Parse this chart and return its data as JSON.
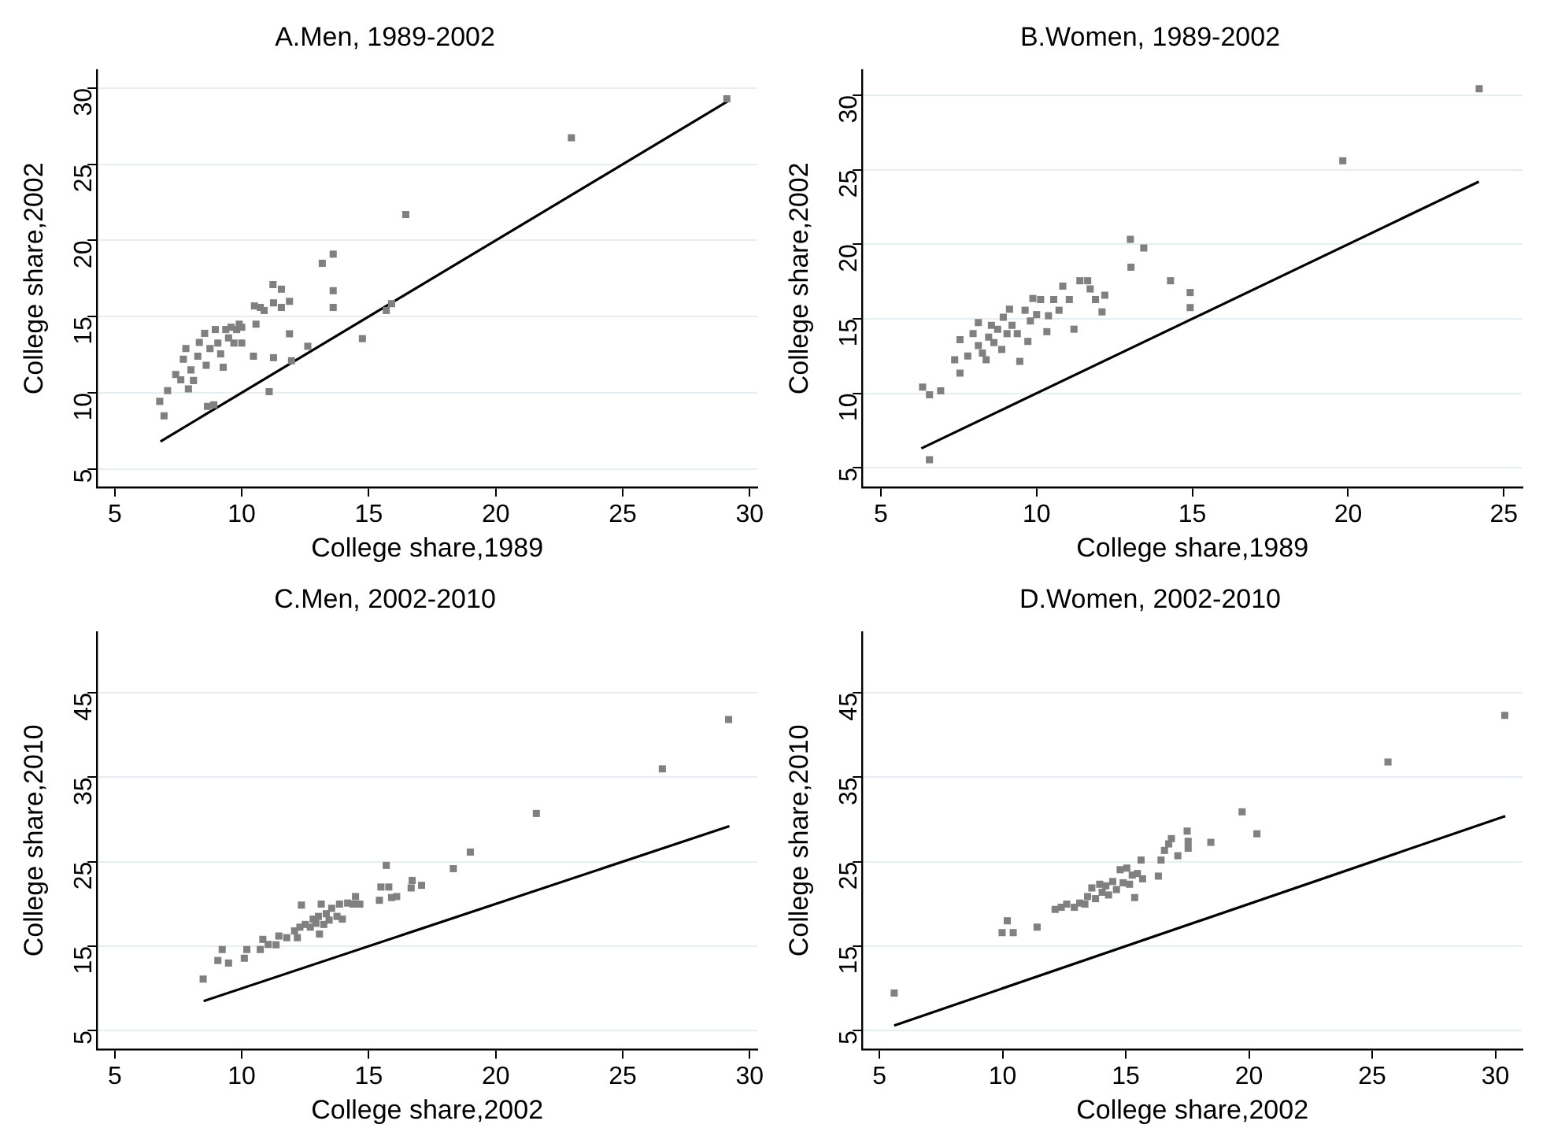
{
  "chart_data": [
    {
      "type": "scatter",
      "title": "A.Men, 1989-2002",
      "xlabel": "College share,1989",
      "ylabel": "College share,2002",
      "xlim": [
        4.3,
        30.3
      ],
      "ylim": [
        3.8,
        31.2
      ],
      "xticks": [
        5,
        10,
        15,
        20,
        25,
        30
      ],
      "yticks": [
        5,
        10,
        15,
        20,
        25,
        30
      ],
      "grid": "y",
      "legend": false,
      "marker": "square",
      "series": [
        {
          "type": "scatter",
          "color": "#808080",
          "x": [
            6.77,
            6.94,
            7.08,
            7.4,
            7.6,
            7.7,
            7.8,
            7.9,
            8.0,
            8.1,
            8.27,
            8.33,
            8.54,
            8.6,
            8.75,
            8.65,
            8.9,
            8.96,
            9.06,
            9.17,
            9.27,
            9.37,
            9.48,
            9.58,
            9.69,
            9.8,
            9.9,
            10.0,
            10.0,
            10.5,
            10.56,
            10.46,
            10.73,
            10.88,
            11.08,
            11.23,
            11.25,
            11.25,
            11.56,
            11.56,
            11.88,
            11.88,
            11.96,
            12.6,
            13.17,
            13.6,
            13.6,
            13.6,
            14.75,
            15.69,
            15.9,
            16.46,
            22.98,
            29.1
          ],
          "values": [
            9.43,
            8.48,
            10.14,
            11.2,
            10.85,
            12.2,
            12.9,
            10.25,
            11.5,
            10.8,
            12.4,
            13.3,
            13.9,
            11.8,
            12.9,
            9.1,
            9.2,
            14.15,
            13.26,
            12.55,
            11.67,
            14.15,
            13.6,
            14.3,
            13.26,
            14.15,
            14.5,
            13.26,
            14.3,
            15.7,
            14.5,
            12.4,
            15.6,
            15.4,
            10.07,
            17.1,
            15.9,
            12.3,
            16.8,
            15.6,
            16.0,
            13.87,
            12.1,
            13.05,
            18.5,
            19.1,
            16.7,
            15.6,
            13.55,
            15.4,
            15.85,
            21.7,
            26.74,
            29.3
          ]
        },
        {
          "type": "line",
          "color": "#000000",
          "marker": "none",
          "x": [
            6.8,
            29.2
          ],
          "values": [
            6.8,
            29.2
          ]
        }
      ]
    },
    {
      "type": "scatter",
      "title": "B.Women, 1989-2002",
      "xlabel": "College share,1989",
      "ylabel": "College share,2002",
      "xlim": [
        4.4,
        25.6
      ],
      "ylim": [
        3.7,
        31.7
      ],
      "xticks": [
        5,
        10,
        15,
        20,
        25
      ],
      "yticks": [
        5,
        10,
        15,
        20,
        25,
        30
      ],
      "grid": "y",
      "legend": false,
      "marker": "square",
      "series": [
        {
          "type": "scatter",
          "color": "#808080",
          "x": [
            6.34,
            6.56,
            6.92,
            6.56,
            7.37,
            7.54,
            7.54,
            7.79,
            7.96,
            8.13,
            8.13,
            8.26,
            8.38,
            8.46,
            8.55,
            8.63,
            8.75,
            8.88,
            8.93,
            9.05,
            9.13,
            9.21,
            9.38,
            9.46,
            9.63,
            9.72,
            9.8,
            9.88,
            10.0,
            10.13,
            10.33,
            10.38,
            10.55,
            10.72,
            10.84,
            11.05,
            11.2,
            11.39,
            11.64,
            11.72,
            11.89,
            12.1,
            12.19,
            13.01,
            13.03,
            13.44,
            14.3,
            14.93,
            14.93,
            19.83,
            24.21
          ],
          "values": [
            10.41,
            9.9,
            10.16,
            5.54,
            12.25,
            13.6,
            11.35,
            12.5,
            14.0,
            14.74,
            13.2,
            12.7,
            12.25,
            13.77,
            14.56,
            13.4,
            14.3,
            12.94,
            15.1,
            14.0,
            15.64,
            14.56,
            14.0,
            12.14,
            15.57,
            13.48,
            14.85,
            16.36,
            15.28,
            16.29,
            14.13,
            15.2,
            16.29,
            15.57,
            17.19,
            16.29,
            14.3,
            17.55,
            17.55,
            17.0,
            16.29,
            15.46,
            16.58,
            20.33,
            18.46,
            19.75,
            17.55,
            16.76,
            15.75,
            25.6,
            30.43
          ]
        },
        {
          "type": "line",
          "color": "#000000",
          "marker": "none",
          "x": [
            6.3,
            24.2
          ],
          "values": [
            6.3,
            24.2
          ]
        }
      ]
    },
    {
      "type": "scatter",
      "title": "C.Men, 2002-2010",
      "xlabel": "College share,2002",
      "ylabel": "College share,2010",
      "xlim": [
        4.3,
        30.3
      ],
      "ylim": [
        2.8,
        52.2
      ],
      "xticks": [
        5,
        10,
        15,
        20,
        25,
        30
      ],
      "yticks": [
        5,
        15,
        25,
        35,
        45
      ],
      "grid": "y",
      "legend": false,
      "marker": "square",
      "series": [
        {
          "type": "scatter",
          "color": "#808080",
          "x": [
            8.48,
            9.06,
            9.23,
            9.48,
            10.1,
            10.2,
            10.73,
            10.83,
            11.04,
            11.35,
            11.46,
            11.77,
            12.08,
            12.19,
            12.29,
            12.35,
            12.5,
            12.7,
            12.81,
            12.92,
            13.02,
            13.06,
            13.13,
            13.23,
            13.33,
            13.44,
            13.54,
            13.75,
            13.85,
            13.96,
            14.17,
            14.38,
            14.48,
            14.65,
            15.42,
            15.48,
            15.69,
            15.79,
            15.9,
            16.1,
            16.67,
            16.71,
            17.08,
            18.33,
            19.0,
            21.6,
            26.56,
            29.17
          ],
          "values": [
            11.1,
            13.3,
            14.6,
            13.0,
            13.57,
            14.6,
            14.6,
            15.8,
            15.2,
            15.16,
            16.2,
            16.0,
            16.8,
            16.0,
            17.25,
            19.86,
            17.57,
            17.25,
            18.2,
            17.7,
            18.52,
            16.43,
            19.98,
            17.57,
            18.84,
            18.08,
            19.48,
            18.52,
            19.98,
            18.2,
            20.1,
            19.98,
            20.87,
            19.98,
            20.43,
            22.0,
            24.56,
            22.0,
            20.75,
            20.87,
            21.89,
            22.78,
            22.2,
            24.17,
            26.14,
            30.71,
            35.98,
            41.83
          ]
        },
        {
          "type": "line",
          "color": "#000000",
          "marker": "none",
          "x": [
            8.5,
            29.2
          ],
          "values": [
            8.5,
            29.2
          ]
        }
      ]
    },
    {
      "type": "scatter",
      "title": "D.Women, 2002-2010",
      "xlabel": "College share,2002",
      "ylabel": "College share,2010",
      "xlim": [
        4.3,
        31.1
      ],
      "ylim": [
        2.8,
        52.2
      ],
      "xticks": [
        5,
        10,
        15,
        20,
        25,
        30
      ],
      "yticks": [
        5,
        15,
        25,
        35,
        45
      ],
      "grid": "y",
      "legend": false,
      "marker": "square",
      "series": [
        {
          "type": "scatter",
          "color": "#808080",
          "x": [
            5.6,
            9.98,
            10.19,
            10.43,
            11.4,
            12.13,
            12.38,
            12.6,
            12.91,
            13.13,
            13.34,
            13.45,
            13.62,
            13.77,
            13.94,
            14.04,
            14.19,
            14.3,
            14.47,
            14.62,
            14.77,
            14.89,
            15.04,
            15.15,
            15.26,
            15.36,
            15.47,
            15.62,
            15.68,
            16.32,
            16.43,
            16.57,
            16.74,
            16.85,
            17.11,
            17.49,
            17.53,
            17.53,
            18.45,
            19.72,
            20.32,
            25.64,
            30.38
          ],
          "values": [
            9.44,
            16.6,
            18.0,
            16.6,
            17.25,
            19.35,
            19.6,
            19.98,
            19.6,
            20.1,
            19.98,
            20.87,
            21.89,
            20.62,
            22.33,
            21.38,
            22.14,
            21.06,
            22.65,
            21.7,
            24.05,
            22.5,
            24.24,
            22.33,
            23.41,
            20.75,
            23.6,
            25.19,
            22.97,
            23.29,
            25.19,
            26.33,
            27.1,
            27.73,
            25.7,
            28.62,
            27.41,
            26.59,
            27.29,
            30.9,
            28.3,
            36.81,
            42.33
          ]
        },
        {
          "type": "line",
          "color": "#000000",
          "marker": "none",
          "x": [
            5.6,
            30.4
          ],
          "values": [
            5.6,
            30.4
          ]
        }
      ]
    }
  ]
}
